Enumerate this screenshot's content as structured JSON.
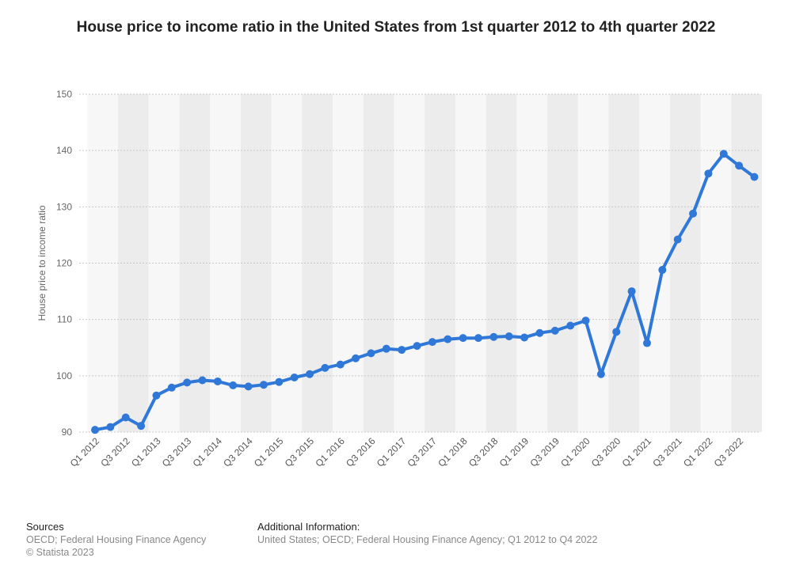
{
  "chart_data": {
    "type": "line",
    "title": "House price to income ratio in the United States from 1st quarter 2012 to 4th quarter 2022",
    "ylabel": "House price to income ratio",
    "ylim": [
      90,
      150
    ],
    "yticks": [
      90,
      100,
      110,
      120,
      130,
      140,
      150
    ],
    "grid": true,
    "x_tick_labels": [
      "Q1 2012",
      "Q3 2012",
      "Q1 2013",
      "Q3 2013",
      "Q1 2014",
      "Q3 2014",
      "Q1 2015",
      "Q3 2015",
      "Q1 2016",
      "Q3 2016",
      "Q1 2017",
      "Q3 2017",
      "Q1 2018",
      "Q3 2018",
      "Q1 2019",
      "Q3 2019",
      "Q1 2020",
      "Q3 2020",
      "Q1 2021",
      "Q3 2021",
      "Q1 2022",
      "Q3 2022"
    ],
    "categories": [
      "Q1 2012",
      "Q2 2012",
      "Q3 2012",
      "Q4 2012",
      "Q1 2013",
      "Q2 2013",
      "Q3 2013",
      "Q4 2013",
      "Q1 2014",
      "Q2 2014",
      "Q3 2014",
      "Q4 2014",
      "Q1 2015",
      "Q2 2015",
      "Q3 2015",
      "Q4 2015",
      "Q1 2016",
      "Q2 2016",
      "Q3 2016",
      "Q4 2016",
      "Q1 2017",
      "Q2 2017",
      "Q3 2017",
      "Q4 2017",
      "Q1 2018",
      "Q2 2018",
      "Q3 2018",
      "Q4 2018",
      "Q1 2019",
      "Q2 2019",
      "Q3 2019",
      "Q4 2019",
      "Q1 2020",
      "Q2 2020",
      "Q3 2020",
      "Q4 2020",
      "Q1 2021",
      "Q2 2021",
      "Q3 2021",
      "Q4 2021",
      "Q1 2022",
      "Q2 2022",
      "Q3 2022",
      "Q4 2022"
    ],
    "values": [
      90.4,
      90.9,
      92.6,
      91.1,
      96.5,
      97.9,
      98.8,
      99.2,
      99.0,
      98.3,
      98.1,
      98.4,
      98.9,
      99.7,
      100.3,
      101.4,
      102.0,
      103.1,
      104.0,
      104.8,
      104.6,
      105.3,
      106.0,
      106.5,
      106.7,
      106.7,
      106.9,
      107.0,
      106.8,
      107.6,
      108.0,
      108.9,
      109.8,
      100.3,
      107.8,
      115.0,
      105.8,
      118.8,
      124.2,
      128.8,
      135.9,
      139.4,
      137.3,
      135.3
    ],
    "line_color": "#2f78d8"
  },
  "footer": {
    "sources_heading": "Sources",
    "sources_line1": "OECD; Federal Housing Finance Agency",
    "sources_line2": "© Statista 2023",
    "additional_heading": "Additional Information:",
    "additional_text": "United States; OECD; Federal Housing Finance Agency; Q1 2012 to Q4 2022"
  }
}
